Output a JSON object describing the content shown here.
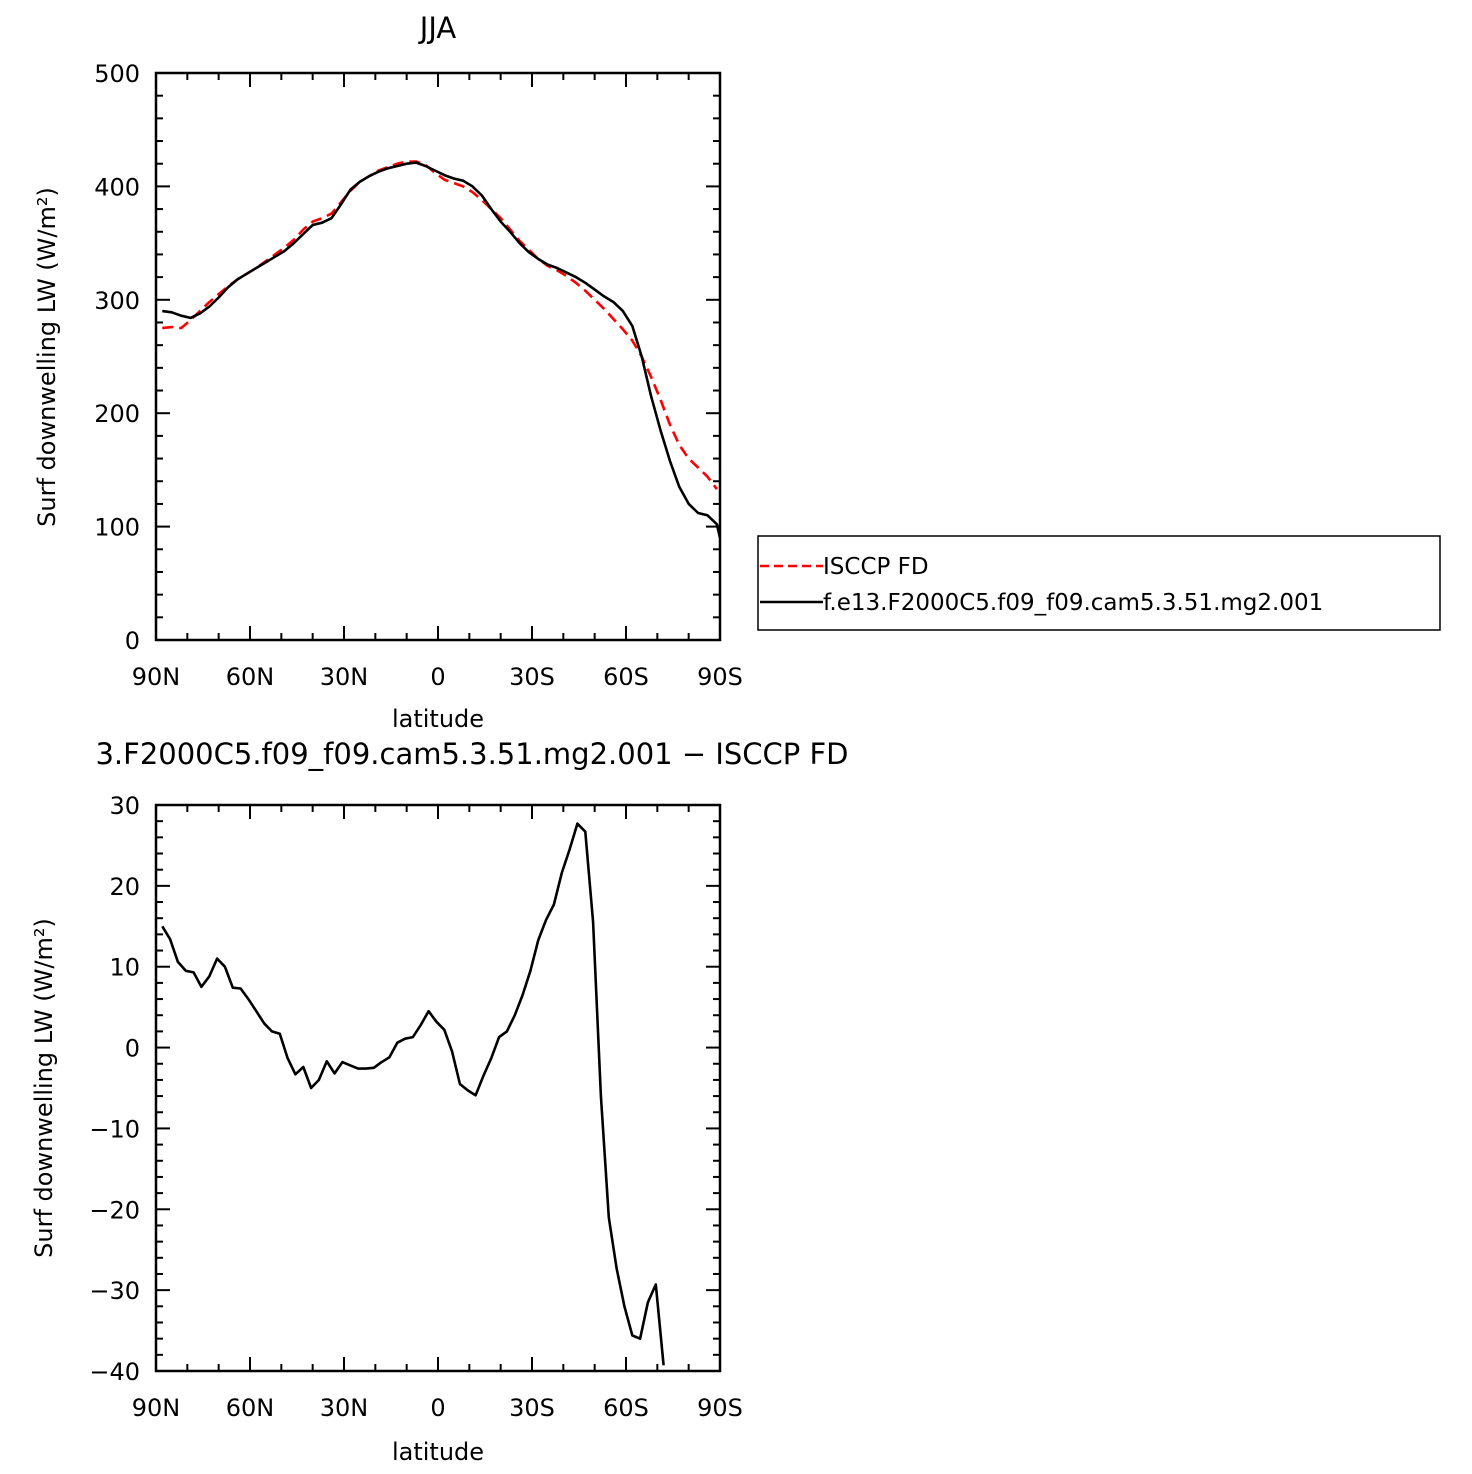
{
  "chart_data": [
    {
      "type": "line",
      "title": "JJA",
      "xlabel": "latitude",
      "ylabel": "Surf downwelling LW (W/m²)",
      "xlim": [
        90,
        -90
      ],
      "ylim": [
        0,
        500
      ],
      "xticks": [
        {
          "value": 90,
          "label": "90N"
        },
        {
          "value": 60,
          "label": "60N"
        },
        {
          "value": 30,
          "label": "30N"
        },
        {
          "value": 0,
          "label": "0"
        },
        {
          "value": -30,
          "label": "30S"
        },
        {
          "value": -60,
          "label": "60S"
        },
        {
          "value": -90,
          "label": "90S"
        }
      ],
      "yticks": [
        0,
        100,
        200,
        300,
        400,
        500
      ],
      "legend_position": "right",
      "series": [
        {
          "name": "ISCCP FD",
          "color": "#ff0000",
          "dash": "dashed",
          "points": [
            [
              88,
              275
            ],
            [
              85,
              276
            ],
            [
              82,
              275
            ],
            [
              79,
              282
            ],
            [
              76,
              290
            ],
            [
              73,
              298
            ],
            [
              70,
              305
            ],
            [
              67,
              312
            ],
            [
              64,
              318
            ],
            [
              61,
              323
            ],
            [
              58,
              328
            ],
            [
              55,
              334
            ],
            [
              52,
              340
            ],
            [
              49,
              346
            ],
            [
              46,
              353
            ],
            [
              43,
              362
            ],
            [
              40,
              369
            ],
            [
              37,
              372
            ],
            [
              34,
              376
            ],
            [
              31,
              386
            ],
            [
              28,
              396
            ],
            [
              25,
              404
            ],
            [
              22,
              409
            ],
            [
              19,
              414
            ],
            [
              16,
              417
            ],
            [
              13,
              420
            ],
            [
              10,
              422
            ],
            [
              7,
              422
            ],
            [
              4,
              419
            ],
            [
              1,
              412
            ],
            [
              -2,
              406
            ],
            [
              -5,
              403
            ],
            [
              -8,
              400
            ],
            [
              -11,
              395
            ],
            [
              -14,
              388
            ],
            [
              -17,
              380
            ],
            [
              -20,
              372
            ],
            [
              -23,
              362
            ],
            [
              -26,
              352
            ],
            [
              -29,
              344
            ],
            [
              -32,
              336
            ],
            [
              -35,
              330
            ],
            [
              -38,
              326
            ],
            [
              -41,
              321
            ],
            [
              -44,
              315
            ],
            [
              -47,
              308
            ],
            [
              -50,
              300
            ],
            [
              -53,
              292
            ],
            [
              -56,
              283
            ],
            [
              -59,
              274
            ],
            [
              -62,
              264
            ],
            [
              -65,
              250
            ],
            [
              -68,
              232
            ],
            [
              -71,
              212
            ],
            [
              -74,
              190
            ],
            [
              -77,
              172
            ],
            [
              -80,
              160
            ],
            [
              -83,
              152
            ],
            [
              -86,
              144
            ],
            [
              -89,
              133
            ]
          ]
        },
        {
          "name": "f.e13.F2000C5.f09_f09.cam5.3.51.mg2.001",
          "color": "#000000",
          "dash": "solid",
          "points": [
            [
              88,
              290
            ],
            [
              85,
              289
            ],
            [
              82,
              286
            ],
            [
              79,
              284
            ],
            [
              76,
              288
            ],
            [
              73,
              294
            ],
            [
              70,
              302
            ],
            [
              67,
              311
            ],
            [
              64,
              318
            ],
            [
              61,
              323
            ],
            [
              58,
              328
            ],
            [
              55,
              333
            ],
            [
              52,
              338
            ],
            [
              49,
              343
            ],
            [
              46,
              350
            ],
            [
              43,
              358
            ],
            [
              40,
              366
            ],
            [
              37,
              368
            ],
            [
              34,
              372
            ],
            [
              31,
              384
            ],
            [
              28,
              397
            ],
            [
              25,
              404
            ],
            [
              22,
              409
            ],
            [
              19,
              413
            ],
            [
              16,
              416
            ],
            [
              13,
              418
            ],
            [
              10,
              420
            ],
            [
              7,
              421
            ],
            [
              4,
              418
            ],
            [
              1,
              414
            ],
            [
              -2,
              410
            ],
            [
              -5,
              407
            ],
            [
              -8,
              405
            ],
            [
              -11,
              400
            ],
            [
              -14,
              392
            ],
            [
              -17,
              380
            ],
            [
              -20,
              369
            ],
            [
              -23,
              360
            ],
            [
              -26,
              350
            ],
            [
              -29,
              342
            ],
            [
              -32,
              336
            ],
            [
              -35,
              331
            ],
            [
              -38,
              328
            ],
            [
              -41,
              324
            ],
            [
              -44,
              320
            ],
            [
              -47,
              315
            ],
            [
              -50,
              309
            ],
            [
              -53,
              303
            ],
            [
              -56,
              298
            ],
            [
              -59,
              290
            ],
            [
              -62,
              277
            ],
            [
              -65,
              250
            ],
            [
              -68,
              215
            ],
            [
              -71,
              185
            ],
            [
              -74,
              158
            ],
            [
              -77,
              135
            ],
            [
              -80,
              120
            ],
            [
              -83,
              112
            ],
            [
              -86,
              110
            ],
            [
              -89,
              102
            ],
            [
              -90,
              90
            ]
          ]
        }
      ]
    },
    {
      "type": "line",
      "title": "3.F2000C5.f09_f09.cam5.3.51.mg2.001 − ISCCP FD",
      "xlabel": "latitude",
      "ylabel": "Surf downwelling LW (W/m²)",
      "xlim": [
        90,
        -90
      ],
      "ylim": [
        -40,
        30
      ],
      "xticks": [
        {
          "value": 90,
          "label": "90N"
        },
        {
          "value": 60,
          "label": "60N"
        },
        {
          "value": 30,
          "label": "30N"
        },
        {
          "value": 0,
          "label": "0"
        },
        {
          "value": -30,
          "label": "30S"
        },
        {
          "value": -60,
          "label": "60S"
        },
        {
          "value": -90,
          "label": "90S"
        }
      ],
      "yticks": [
        {
          "value": 30,
          "label": "30"
        },
        {
          "value": 20,
          "label": "20"
        },
        {
          "value": 10,
          "label": "10"
        },
        {
          "value": 0,
          "label": "0"
        },
        {
          "value": -10,
          "label": "−10"
        },
        {
          "value": -20,
          "label": "−20"
        },
        {
          "value": -30,
          "label": "−30"
        },
        {
          "value": -40,
          "label": "−40"
        }
      ],
      "series": [
        {
          "color": "#000000",
          "dash": "solid",
          "points": [
            [
              88,
              15
            ],
            [
              85.5,
              13.4
            ],
            [
              83,
              10.6
            ],
            [
              80.5,
              9.5
            ],
            [
              78,
              9.3
            ],
            [
              75.5,
              7.5
            ],
            [
              73,
              8.8
            ],
            [
              70.5,
              11
            ],
            [
              68,
              10
            ],
            [
              65.5,
              7.4
            ],
            [
              63,
              7.3
            ],
            [
              60.5,
              6
            ],
            [
              58,
              4.5
            ],
            [
              55.5,
              3
            ],
            [
              53,
              2
            ],
            [
              50.5,
              1.7
            ],
            [
              48,
              -1.3
            ],
            [
              45.5,
              -3.3
            ],
            [
              43,
              -2.4
            ],
            [
              40.5,
              -5
            ],
            [
              38,
              -4
            ],
            [
              35.5,
              -1.7
            ],
            [
              33,
              -3.2
            ],
            [
              30.5,
              -1.8
            ],
            [
              28,
              -2.2
            ],
            [
              25.5,
              -2.6
            ],
            [
              23,
              -2.6
            ],
            [
              20.5,
              -2.5
            ],
            [
              18,
              -1.8
            ],
            [
              15.5,
              -1.2
            ],
            [
              13,
              0.6
            ],
            [
              10.5,
              1.1
            ],
            [
              8,
              1.3
            ],
            [
              5.5,
              2.8
            ],
            [
              3,
              4.5
            ],
            [
              0.5,
              3.2
            ],
            [
              -2,
              2.2
            ],
            [
              -4.5,
              -0.5
            ],
            [
              -7,
              -4.5
            ],
            [
              -9.5,
              -5.3
            ],
            [
              -12,
              -5.9
            ],
            [
              -14.5,
              -3.5
            ],
            [
              -17,
              -1.3
            ],
            [
              -19.5,
              1.3
            ],
            [
              -22,
              2
            ],
            [
              -24.5,
              4
            ],
            [
              -27,
              6.5
            ],
            [
              -29.5,
              9.5
            ],
            [
              -32,
              13.3
            ],
            [
              -34.5,
              15.8
            ],
            [
              -37,
              17.7
            ],
            [
              -39.5,
              21.6
            ],
            [
              -42,
              24.5
            ],
            [
              -44.5,
              27.7
            ],
            [
              -47,
              26.7
            ],
            [
              -49.5,
              15.5
            ],
            [
              -52,
              -6
            ],
            [
              -54.5,
              -21
            ],
            [
              -57,
              -27.3
            ],
            [
              -59.5,
              -32
            ],
            [
              -62,
              -35.6
            ],
            [
              -64.5,
              -36
            ],
            [
              -67,
              -31.5
            ],
            [
              -69.5,
              -29.3
            ],
            [
              -72,
              -39.3
            ]
          ]
        }
      ]
    }
  ]
}
